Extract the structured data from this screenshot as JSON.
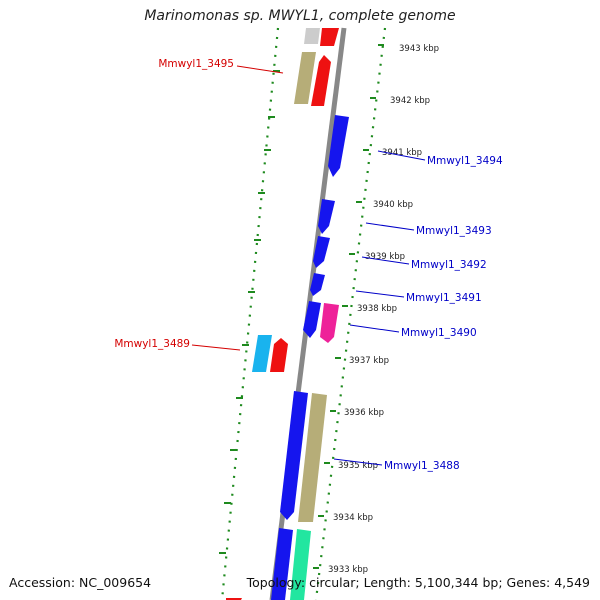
{
  "title": "Marinomonas sp. MWYL1, complete genome",
  "footer": {
    "accession": "Accession: NC_009654",
    "summary": "Topology: circular; Length: 5,100,344 bp; Genes: 4,549"
  },
  "colors": {
    "backbone": "#8c8c8c",
    "tick": "#1e8a1e",
    "reverse_label": "#d40000",
    "forward_label": "#0000c8"
  },
  "ruler": {
    "unit": "kbp",
    "labels": [
      {
        "text": "3943 kbp",
        "kbp": 3943
      },
      {
        "text": "3942 kbp",
        "kbp": 3942
      },
      {
        "text": "3941 kbp",
        "kbp": 3941
      },
      {
        "text": "3940 kbp",
        "kbp": 3940
      },
      {
        "text": "3939 kbp",
        "kbp": 3939
      },
      {
        "text": "3938 kbp",
        "kbp": 3938
      },
      {
        "text": "3937 kbp",
        "kbp": 3937
      },
      {
        "text": "3936 kbp",
        "kbp": 3936
      },
      {
        "text": "3935 kbp",
        "kbp": 3935
      },
      {
        "text": "3934 kbp",
        "kbp": 3934
      },
      {
        "text": "3933 kbp",
        "kbp": 3933
      }
    ]
  },
  "gene_labels": [
    {
      "text": "Mmwyl1_3495",
      "strand": "reverse"
    },
    {
      "text": "Mmwyl1_3494",
      "strand": "forward"
    },
    {
      "text": "Mmwyl1_3493",
      "strand": "forward"
    },
    {
      "text": "Mmwyl1_3492",
      "strand": "forward"
    },
    {
      "text": "Mmwyl1_3491",
      "strand": "forward"
    },
    {
      "text": "Mmwyl1_3490",
      "strand": "forward"
    },
    {
      "text": "Mmwyl1_3489",
      "strand": "reverse"
    },
    {
      "text": "Mmwyl1_3488",
      "strand": "forward"
    }
  ]
}
